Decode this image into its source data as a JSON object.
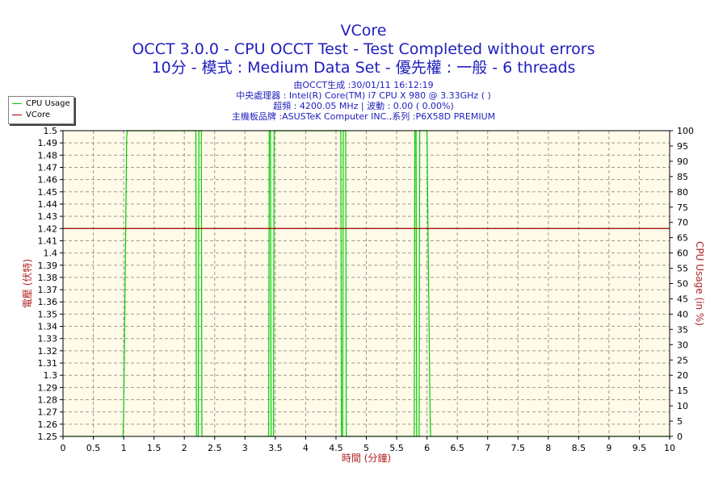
{
  "chart_data": {
    "type": "line",
    "title": "VCore",
    "subtitle_lines": [
      "OCCT 3.0.0 - CPU OCCT Test - Test Completed without errors",
      "10分 - 模式 : Medium Data Set - 優先權 : 一般 - 6 threads"
    ],
    "info_lines": [
      "由OCCT生成 :30/01/11 16:12:19",
      "中央處理器 : Intel(R) Core(TM) i7 CPU X 980 @ 3.33GHz (   )",
      "超頻 : 4200.05 MHz | 波動 : 0.00 ( 0.00%)",
      "主機板品牌 :ASUSTeK Computer INC.,系列 :P6X58D PREMIUM"
    ],
    "xlabel": "時間 (分鐘)",
    "ylabel_left": "電壓 (伏特)",
    "ylabel_right": "CPU Usage (in %)",
    "xlim": [
      0,
      10
    ],
    "ylim_left": [
      1.25,
      1.5
    ],
    "ylim_right": [
      0,
      100
    ],
    "x_ticks": [
      "0",
      "0.5",
      "1",
      "1.5",
      "2",
      "2.5",
      "3",
      "3.5",
      "4",
      "4.5",
      "5",
      "5.5",
      "6",
      "6.5",
      "7",
      "7.5",
      "8",
      "8.5",
      "9",
      "9.5",
      "10"
    ],
    "y_left_ticks": [
      "1.25",
      "1.26",
      "1.27",
      "1.28",
      "1.29",
      "1.3",
      "1.31",
      "1.32",
      "1.33",
      "1.34",
      "1.35",
      "1.36",
      "1.37",
      "1.38",
      "1.39",
      "1.4",
      "1.41",
      "1.42",
      "1.43",
      "1.44",
      "1.45",
      "1.46",
      "1.47",
      "1.48",
      "1.49",
      "1.5"
    ],
    "y_right_ticks": [
      "0",
      "5",
      "10",
      "15",
      "20",
      "25",
      "30",
      "35",
      "40",
      "45",
      "50",
      "55",
      "60",
      "65",
      "70",
      "75",
      "80",
      "85",
      "90",
      "95",
      "100"
    ],
    "grid": true,
    "legend_position": "top-left",
    "series": [
      {
        "name": "CPU Usage",
        "color": "#00cc00",
        "axis": "right",
        "x": [
          0,
          0.99,
          1.0,
          1.05,
          1.06,
          2.19,
          2.2,
          2.23,
          2.24,
          2.28,
          2.29,
          3.39,
          3.4,
          3.42,
          3.43,
          3.47,
          3.48,
          4.58,
          4.59,
          4.61,
          4.62,
          4.66,
          4.67,
          5.79,
          5.8,
          5.82,
          5.83,
          5.87,
          5.88,
          6.0,
          6.01,
          6.05,
          6.06,
          10
        ],
        "y": [
          0,
          0,
          8,
          98,
          100,
          100,
          0,
          0,
          100,
          100,
          0,
          0,
          100,
          100,
          0,
          0,
          100,
          100,
          0,
          0,
          100,
          100,
          0,
          0,
          100,
          100,
          0,
          0,
          100,
          100,
          80,
          8,
          0,
          0
        ]
      },
      {
        "name": "VCore",
        "color": "#a00000",
        "axis": "left",
        "x": [
          0,
          10
        ],
        "y": [
          1.42,
          1.42
        ]
      }
    ]
  }
}
